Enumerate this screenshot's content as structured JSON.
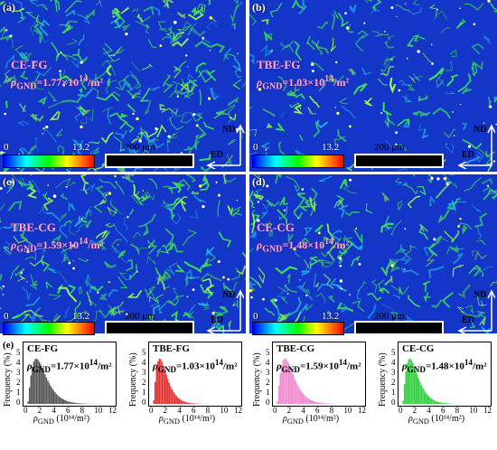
{
  "maps": [
    {
      "label": "(a)",
      "title": "CE-FG",
      "rho": "ρ",
      "rho_sub": "GND",
      "rho_val": "=1.77×10",
      "rho_exp": "14",
      "rho_unit": "/m²"
    },
    {
      "label": "(b)",
      "title": "TBE-FG",
      "rho": "ρ",
      "rho_sub": "GND",
      "rho_val": "=1.03×10",
      "rho_exp": "14",
      "rho_unit": "/m²"
    },
    {
      "label": "(c)",
      "title": "TBE-CG",
      "rho": "ρ",
      "rho_sub": "GND",
      "rho_val": "=1.59×10",
      "rho_exp": "14",
      "rho_unit": "/m²"
    },
    {
      "label": "(d)",
      "title": "CE-CG",
      "rho": "ρ",
      "rho_sub": "GND",
      "rho_val": "=1.48×10",
      "rho_exp": "14",
      "rho_unit": "/m²"
    }
  ],
  "colorbar": {
    "min": "0",
    "max": "13.2"
  },
  "scalebar": {
    "text": "200 μm"
  },
  "axes": {
    "nd": "ND",
    "ed": "ED"
  },
  "histograms_label": "(e)",
  "histograms": [
    {
      "title": "CE-FG",
      "rho_val": "=1.77×10",
      "color": "#555555"
    },
    {
      "title": "TBE-FG",
      "rho_val": "=1.03×10",
      "color": "#e03030"
    },
    {
      "title": "TBE-CG",
      "rho_val": "=1.59×10",
      "color": "#f08ad0"
    },
    {
      "title": "CE-CG",
      "rho_val": "=1.48×10",
      "color": "#30d040"
    }
  ],
  "hist_axis": {
    "ylabel": "Frequency (%)",
    "xlabel": "(10¹⁴/m²)",
    "xlabel_rho": "ρ",
    "xlabel_sub": "GND",
    "yticks": [
      "0",
      "1",
      "2",
      "3",
      "4",
      "5"
    ],
    "xticks": [
      "0",
      "2",
      "4",
      "6",
      "8",
      "10",
      "12"
    ],
    "rho": "ρ",
    "sub": "GND",
    "exp": "14",
    "unit": "/m²"
  },
  "colors": {
    "map_bg": "#1436c8",
    "grain": "#3fe05a",
    "label": "#f7a8e6"
  }
}
